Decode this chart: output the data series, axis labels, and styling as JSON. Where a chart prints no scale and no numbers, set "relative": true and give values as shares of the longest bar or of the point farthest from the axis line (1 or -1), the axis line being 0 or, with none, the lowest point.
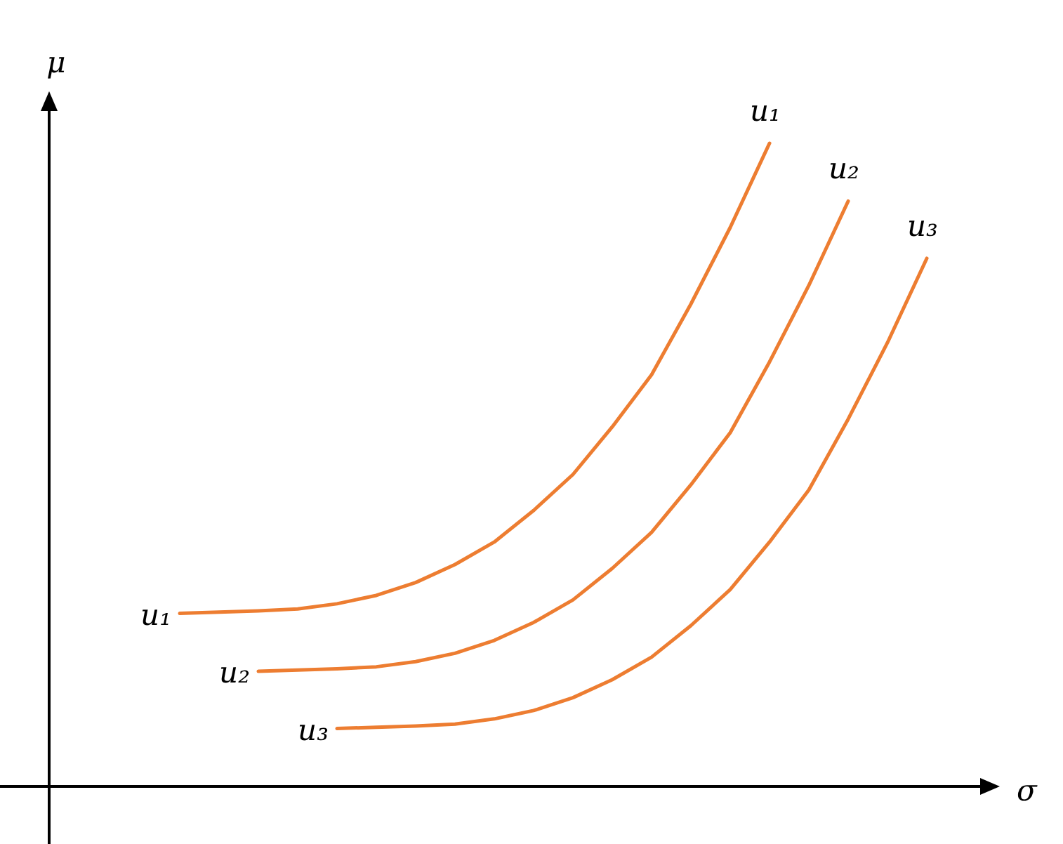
{
  "chart_data": {
    "type": "line",
    "relative": true,
    "xlabel": "σ",
    "ylabel": "μ",
    "marker": "none",
    "line_style": "solid",
    "grid": false,
    "legend": false,
    "categories": [
      null,
      null,
      null,
      null,
      null,
      null,
      null,
      null,
      null,
      null,
      null,
      null,
      null,
      null,
      null,
      null,
      null,
      null,
      null,
      null
    ],
    "series": [
      {
        "name": "u₁",
        "color": "#ed7d31",
        "values": [
          0.269,
          0.271,
          0.273,
          0.276,
          0.284,
          0.297,
          0.317,
          0.345,
          0.38,
          0.429,
          0.485,
          0.559,
          0.64,
          0.75,
          0.869,
          1,
          null,
          null,
          null,
          null
        ]
      },
      {
        "name": "u₂",
        "color": "#ed7d31",
        "values": [
          null,
          null,
          0.179,
          0.181,
          0.183,
          0.186,
          0.194,
          0.207,
          0.227,
          0.255,
          0.29,
          0.339,
          0.395,
          0.469,
          0.55,
          0.66,
          0.779,
          0.91,
          null,
          null
        ]
      },
      {
        "name": "u₃",
        "color": "#ed7d31",
        "values": [
          null,
          null,
          null,
          null,
          0.09,
          0.092,
          0.094,
          0.097,
          0.105,
          0.118,
          0.138,
          0.166,
          0.201,
          0.25,
          0.306,
          0.38,
          0.461,
          0.571,
          0.69,
          0.821
        ]
      }
    ]
  }
}
